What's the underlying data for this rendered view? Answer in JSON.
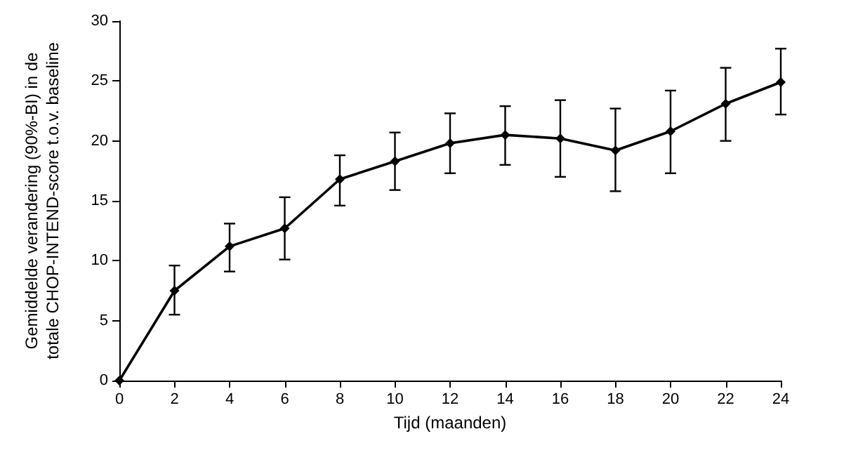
{
  "chart_data": {
    "type": "line",
    "xlabel": "Tijd (maanden)",
    "ylabel": "Gemiddelde verandering (90%-BI) in de totale CHOP-INTEND-score t.o.v. baseline",
    "x": [
      0,
      2,
      4,
      6,
      8,
      10,
      12,
      14,
      16,
      18,
      20,
      22,
      24
    ],
    "values": [
      0,
      7.5,
      11.2,
      12.7,
      16.8,
      18.3,
      19.8,
      20.5,
      20.2,
      19.2,
      20.8,
      23.1,
      24.9
    ],
    "errors": [
      null,
      [
        5.5,
        9.6
      ],
      [
        9.1,
        13.1
      ],
      [
        10.1,
        15.3
      ],
      [
        14.6,
        18.8
      ],
      [
        15.9,
        20.7
      ],
      [
        17.3,
        22.3
      ],
      [
        18.0,
        22.9
      ],
      [
        17.0,
        23.4
      ],
      [
        15.8,
        22.7
      ],
      [
        17.3,
        24.2
      ],
      [
        20.0,
        26.1
      ],
      [
        22.2,
        27.7
      ]
    ],
    "color": "#000000",
    "marker": "diamond",
    "line_style": "solid",
    "grid": false,
    "xlim": [
      0,
      24
    ],
    "xticks": [
      0,
      2,
      4,
      6,
      8,
      10,
      12,
      14,
      16,
      18,
      20,
      22,
      24
    ],
    "ylim": [
      0,
      30
    ],
    "yticks": [
      0,
      5,
      10,
      15,
      20,
      25,
      30
    ]
  }
}
